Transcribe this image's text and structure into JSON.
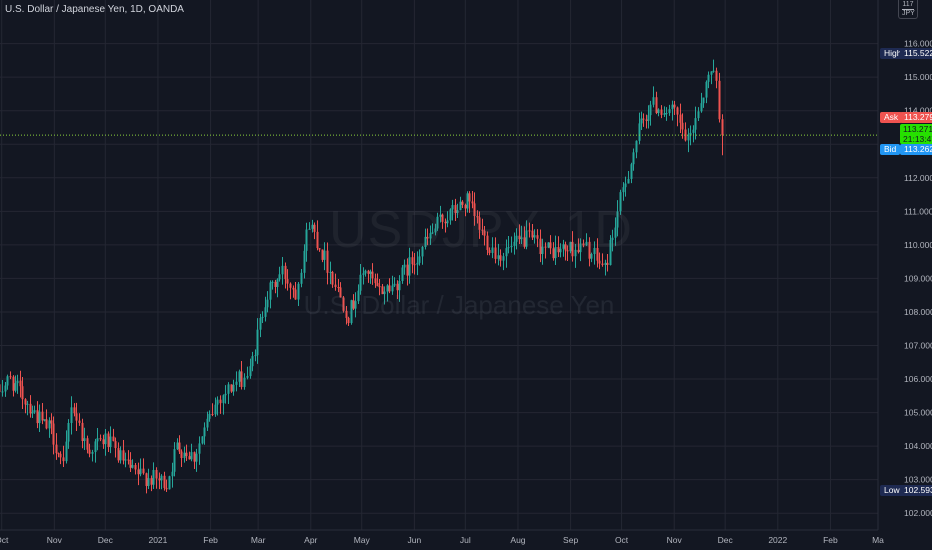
{
  "header": {
    "symbol_description": "U.S. Dollar / Japanese Yen, 1D, OANDA"
  },
  "watermark": {
    "symbol": "USDJPY, 1D",
    "description": "U.S. Dollar / Japanese Yen"
  },
  "currency_badge": {
    "top": "117",
    "bottom": "JPY"
  },
  "price_labels": {
    "high": {
      "label": "High",
      "value": "115.522"
    },
    "ask": {
      "label": "Ask",
      "value": "113.279"
    },
    "last": {
      "value": "113.271",
      "countdown": "21:13:47"
    },
    "bid": {
      "label": "Bid",
      "value": "113.262"
    },
    "low": {
      "label": "Low",
      "value": "102.593"
    }
  },
  "colors": {
    "background": "#131722",
    "grid": "#242733",
    "up_candle": "#26a69a",
    "down_candle": "#ef5350",
    "ask_tag": "#ef5350",
    "last_tag": "#26e000",
    "bid_tag": "#2196f3",
    "high_low_tag": "#1e2a52",
    "last_price_line": "#8bd23c"
  },
  "chart_data": {
    "type": "candlestick",
    "title": "U.S. Dollar / Japanese Yen, 1D, OANDA",
    "interval": "1D",
    "ylim": [
      101.5,
      117.3
    ],
    "y_ticks": [
      "102.000",
      "103.000",
      "104.000",
      "105.000",
      "106.000",
      "107.000",
      "108.000",
      "109.000",
      "110.000",
      "111.000",
      "112.000",
      "113.000",
      "114.000",
      "115.000",
      "116.000"
    ],
    "x_ticks": [
      "Oct",
      "Nov",
      "Dec",
      "2021",
      "Feb",
      "Mar",
      "Apr",
      "May",
      "Jun",
      "Jul",
      "Aug",
      "Sep",
      "Oct",
      "Nov",
      "Dec",
      "2022",
      "Feb",
      "Ma"
    ],
    "grid": true,
    "high": 115.522,
    "low": 102.593,
    "ask": 113.279,
    "bid": 113.262,
    "last": 113.271,
    "price_path": [
      {
        "date": "2020-09-28",
        "close": 105.6
      },
      {
        "date": "2020-10-06",
        "close": 106.0
      },
      {
        "date": "2020-10-16",
        "close": 105.3
      },
      {
        "date": "2020-10-26",
        "close": 104.6
      },
      {
        "date": "2020-10-30",
        "close": 104.5
      },
      {
        "date": "2020-11-06",
        "close": 103.3
      },
      {
        "date": "2020-11-11",
        "close": 105.3
      },
      {
        "date": "2020-11-20",
        "close": 103.9
      },
      {
        "date": "2020-12-01",
        "close": 104.2
      },
      {
        "date": "2020-12-17",
        "close": 103.2
      },
      {
        "date": "2021-01-06",
        "close": 102.9
      },
      {
        "date": "2021-01-12",
        "close": 104.0
      },
      {
        "date": "2021-01-22",
        "close": 103.7
      },
      {
        "date": "2021-02-05",
        "close": 105.4
      },
      {
        "date": "2021-02-16",
        "close": 105.9
      },
      {
        "date": "2021-02-24",
        "close": 106.2
      },
      {
        "date": "2021-03-05",
        "close": 108.4
      },
      {
        "date": "2021-03-15",
        "close": 109.2
      },
      {
        "date": "2021-03-23",
        "close": 108.6
      },
      {
        "date": "2021-03-31",
        "close": 110.7
      },
      {
        "date": "2021-04-09",
        "close": 109.6
      },
      {
        "date": "2021-04-23",
        "close": 107.9
      },
      {
        "date": "2021-05-03",
        "close": 109.3
      },
      {
        "date": "2021-05-10",
        "close": 108.6
      },
      {
        "date": "2021-05-20",
        "close": 108.8
      },
      {
        "date": "2021-06-01",
        "close": 109.6
      },
      {
        "date": "2021-06-16",
        "close": 110.7
      },
      {
        "date": "2021-07-02",
        "close": 111.3
      },
      {
        "date": "2021-07-12",
        "close": 110.2
      },
      {
        "date": "2021-07-20",
        "close": 109.7
      },
      {
        "date": "2021-07-28",
        "close": 109.9
      },
      {
        "date": "2021-08-06",
        "close": 110.2
      },
      {
        "date": "2021-08-20",
        "close": 109.8
      },
      {
        "date": "2021-09-02",
        "close": 109.9
      },
      {
        "date": "2021-09-10",
        "close": 109.9
      },
      {
        "date": "2021-09-21",
        "close": 109.3
      },
      {
        "date": "2021-09-30",
        "close": 111.3
      },
      {
        "date": "2021-10-11",
        "close": 113.4
      },
      {
        "date": "2021-10-18",
        "close": 114.2
      },
      {
        "date": "2021-11-01",
        "close": 113.9
      },
      {
        "date": "2021-11-09",
        "close": 113.0
      },
      {
        "date": "2021-11-15",
        "close": 114.1
      },
      {
        "date": "2021-11-24",
        "close": 115.4
      },
      {
        "date": "2021-11-29",
        "close": 113.3
      }
    ]
  }
}
